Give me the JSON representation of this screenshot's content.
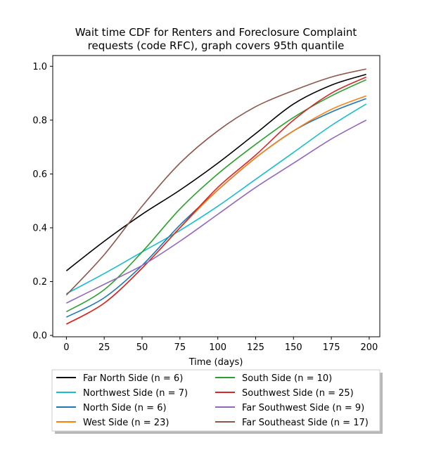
{
  "chart_data": {
    "type": "line",
    "title_line1": "Wait time CDF for Renters and Foreclosure Complaint",
    "title_line2": "requests (code RFC), graph covers 95th quantile",
    "xlabel": "Time (days)",
    "ylabel": "",
    "xlim": [
      -9,
      207
    ],
    "ylim": [
      -0.005,
      1.04
    ],
    "xticks": [
      0,
      25,
      50,
      75,
      100,
      125,
      150,
      175,
      200
    ],
    "yticks": [
      0.0,
      0.2,
      0.4,
      0.6,
      0.8,
      1.0
    ],
    "xtick_labels": [
      "0",
      "25",
      "50",
      "75",
      "100",
      "125",
      "150",
      "175",
      "200"
    ],
    "ytick_labels": [
      "0.0",
      "0.2",
      "0.4",
      "0.6",
      "0.8",
      "1.0"
    ],
    "grid": false,
    "legend_position": "bottom-center",
    "x": [
      0,
      25,
      50,
      75,
      100,
      125,
      150,
      175,
      198
    ],
    "series": [
      {
        "name": "Far North Side (n = 6)",
        "color": "#000000",
        "values": [
          0.24,
          0.35,
          0.45,
          0.54,
          0.64,
          0.75,
          0.86,
          0.93,
          0.97
        ]
      },
      {
        "name": "Northwest Side (n = 7)",
        "color": "#17becf",
        "values": [
          0.155,
          0.23,
          0.31,
          0.39,
          0.48,
          0.58,
          0.68,
          0.78,
          0.86
        ]
      },
      {
        "name": "North Side (n = 6)",
        "color": "#1f77b4",
        "values": [
          0.068,
          0.14,
          0.26,
          0.41,
          0.54,
          0.66,
          0.76,
          0.83,
          0.88
        ]
      },
      {
        "name": "West Side (n = 23)",
        "color": "#ff7f0e",
        "values": [
          0.042,
          0.12,
          0.25,
          0.4,
          0.54,
          0.66,
          0.76,
          0.84,
          0.89
        ]
      },
      {
        "name": "South Side (n = 10)",
        "color": "#2ca02c",
        "values": [
          0.088,
          0.17,
          0.31,
          0.47,
          0.6,
          0.71,
          0.81,
          0.89,
          0.95
        ]
      },
      {
        "name": "Southwest Side (n = 25)",
        "color": "#d62728",
        "values": [
          0.042,
          0.12,
          0.25,
          0.4,
          0.55,
          0.67,
          0.8,
          0.9,
          0.96
        ]
      },
      {
        "name": "Far Southwest Side (n = 9)",
        "color": "#9467bd",
        "values": [
          0.12,
          0.19,
          0.26,
          0.35,
          0.45,
          0.55,
          0.64,
          0.73,
          0.8
        ]
      },
      {
        "name": "Far Southeast Side (n = 17)",
        "color": "#8c564b",
        "values": [
          0.15,
          0.3,
          0.48,
          0.64,
          0.76,
          0.85,
          0.91,
          0.96,
          0.99
        ]
      }
    ]
  }
}
